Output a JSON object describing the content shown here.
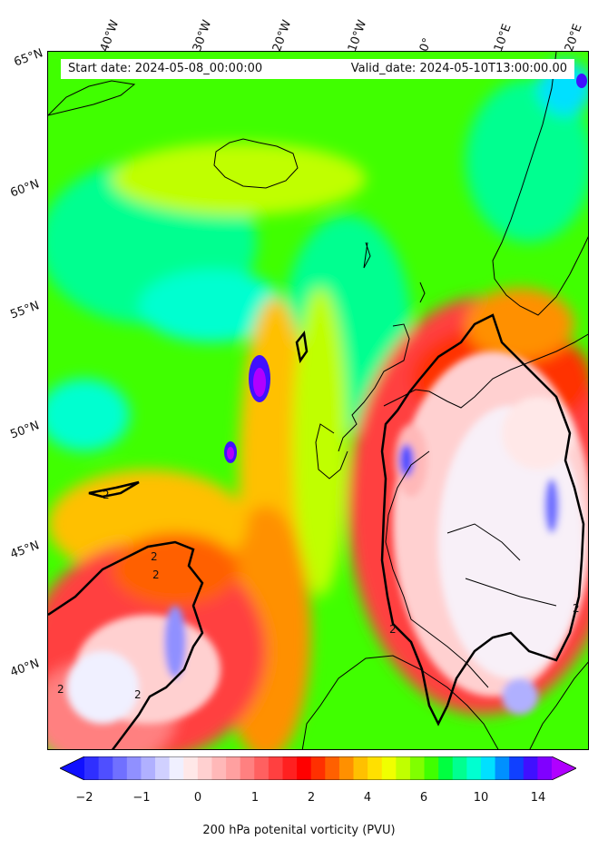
{
  "map": {
    "region": "North Atlantic and Western Europe",
    "projection_extent": {
      "lon_min": -45,
      "lon_max": 20,
      "lat_min": 37,
      "lat_max": 65
    },
    "longitude_labels": [
      "40°W",
      "30°W",
      "20°W",
      "10°W",
      "0°",
      "10°E",
      "20°E"
    ],
    "latitude_labels": [
      "65°N",
      "60°N",
      "55°N",
      "50°N",
      "45°N",
      "40°N"
    ],
    "start_date_text": "Start date: 2024-05-08_00:00:00",
    "valid_date_text": "Valid_date: 2024-05-10T13:00:00.00",
    "contour_label": "2",
    "contour_level_pvu": 2
  },
  "colorbar": {
    "title": "200 hPa potenital vorticity (PVU)",
    "tick_labels": [
      "−2",
      "−1",
      "0",
      "1",
      "2",
      "4",
      "6",
      "10",
      "14"
    ],
    "colors": [
      "#1010ff",
      "#2f2fff",
      "#4f4fff",
      "#7070ff",
      "#9090ff",
      "#b0b0ff",
      "#d0d0ff",
      "#f0f0ff",
      "#ffe8e8",
      "#ffd0d0",
      "#ffb8b8",
      "#ffa0a0",
      "#ff8080",
      "#ff6060",
      "#ff4040",
      "#ff2020",
      "#ff0000",
      "#ff3000",
      "#ff6000",
      "#ff9000",
      "#ffc000",
      "#ffe000",
      "#f0ff00",
      "#c0ff00",
      "#80ff00",
      "#40ff00",
      "#00ff40",
      "#00ff90",
      "#00ffd0",
      "#00e0ff",
      "#0090ff",
      "#1040ff",
      "#4010ff",
      "#8000ff",
      "#b000ff"
    ]
  }
}
